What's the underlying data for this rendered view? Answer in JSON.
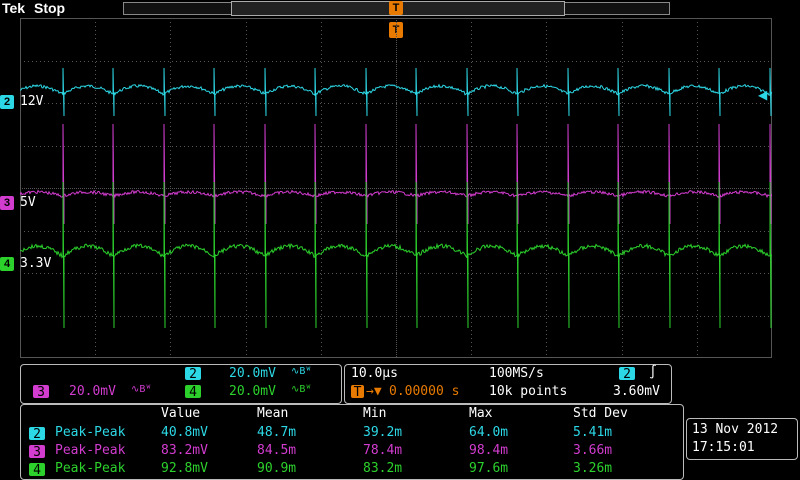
{
  "header": {
    "brand": "Tek",
    "run_state": "Stop"
  },
  "trigger": {
    "marker": "T",
    "position_glyph": "T"
  },
  "channels": [
    {
      "id": "2",
      "label": "12V",
      "color": "#2dd8e6"
    },
    {
      "id": "3",
      "label": "5V",
      "color": "#d23ccf"
    },
    {
      "id": "4",
      "label": "3.3V",
      "color": "#2cd12c"
    }
  ],
  "vertical_panel": {
    "ch2": {
      "id": "2",
      "scale": "20.0mV",
      "coupling": "∿Bᵂ"
    },
    "ch3": {
      "id": "3",
      "scale": "20.0mV",
      "coupling": "∿Bᵂ"
    },
    "ch4": {
      "id": "4",
      "scale": "20.0mV",
      "coupling": "∿Bᵂ"
    }
  },
  "horizontal_panel": {
    "timebase": "10.0µs",
    "sample_rate": "100MS/s",
    "trigger_delay": "0.00000 s",
    "record_length": "10k points",
    "trigger_source": "2",
    "trigger_slope": "∫",
    "trigger_level": "3.60mV"
  },
  "measurements": {
    "headers": [
      "Value",
      "Mean",
      "Min",
      "Max",
      "Std Dev"
    ],
    "rows": [
      {
        "ch": "2",
        "name": "Peak-Peak",
        "value": "40.8mV",
        "mean": "48.7m",
        "min": "39.2m",
        "max": "64.0m",
        "std": "5.41m"
      },
      {
        "ch": "3",
        "name": "Peak-Peak",
        "value": "83.2mV",
        "mean": "84.5m",
        "min": "78.4m",
        "max": "98.4m",
        "std": "3.66m"
      },
      {
        "ch": "4",
        "name": "Peak-Peak",
        "value": "92.8mV",
        "mean": "90.9m",
        "min": "83.2m",
        "max": "97.6m",
        "std": "3.26m"
      }
    ]
  },
  "datetime": {
    "date": "13 Nov 2012",
    "time": "17:15:01"
  }
}
